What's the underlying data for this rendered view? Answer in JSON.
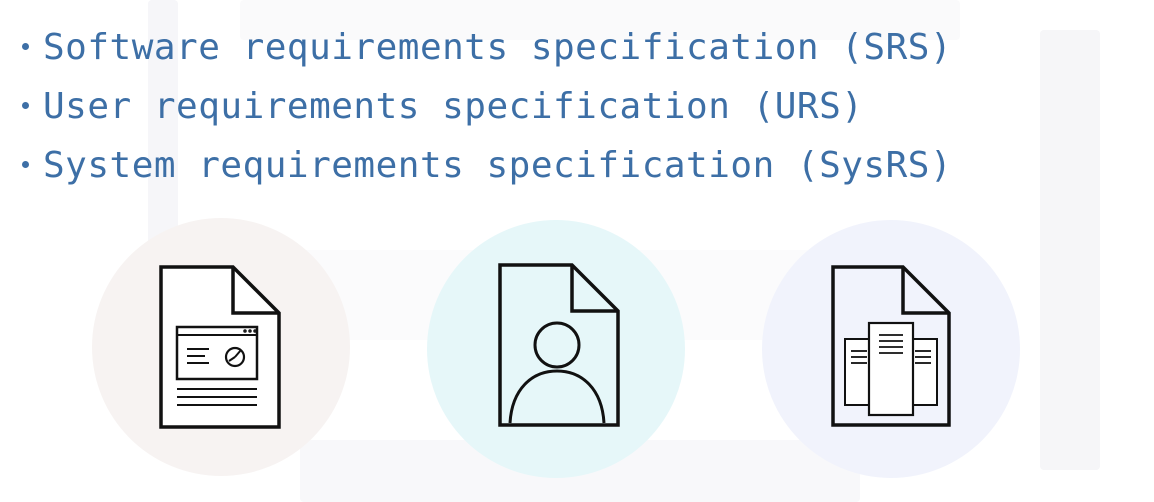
{
  "bullets": [
    {
      "label": "Software requirements specification (SRS)"
    },
    {
      "label": "User requirements specification (URS)"
    },
    {
      "label": "System requirements specification (SysRS)"
    }
  ],
  "icons": [
    {
      "name": "software-document-icon",
      "bg": "#f7f3f2"
    },
    {
      "name": "user-document-icon",
      "bg": "#e6f7f9"
    },
    {
      "name": "system-document-icon",
      "bg": "#f1f3fc"
    }
  ],
  "colors": {
    "text": "#3d6fa6",
    "icon_stroke": "#111111"
  }
}
